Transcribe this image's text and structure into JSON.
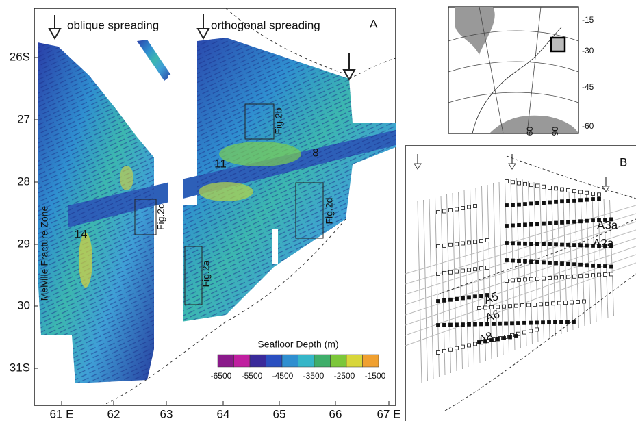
{
  "panel_a": {
    "label": "A",
    "oblique": "oblique spreading",
    "orthogonal": "orthogonal spreading",
    "lat_ticks": [
      "26S",
      "27",
      "28",
      "29",
      "30",
      "31S"
    ],
    "lon_ticks": [
      "61 E",
      "62",
      "63",
      "64",
      "65",
      "66",
      "67 E"
    ],
    "boxes": [
      "Fig.2b",
      "Fig.2c",
      "Fig.2d",
      "Fig.2a"
    ],
    "segments": [
      "11",
      "8",
      "14"
    ],
    "fracture_zone": "Melville Fracture Zone",
    "colorbar": {
      "title": "Seafloor Depth (m)",
      "ticks": [
        -6500,
        -5500,
        -4500,
        -3500,
        -2500,
        -1500
      ]
    }
  },
  "inset": {
    "lat_ticks": [
      -15,
      -30,
      -45,
      -60
    ],
    "lon_ticks": [
      60,
      90
    ]
  },
  "panel_b": {
    "label": "B",
    "anomalies": [
      "A3a",
      "A2a",
      "A5",
      "A6",
      "A8"
    ]
  }
}
